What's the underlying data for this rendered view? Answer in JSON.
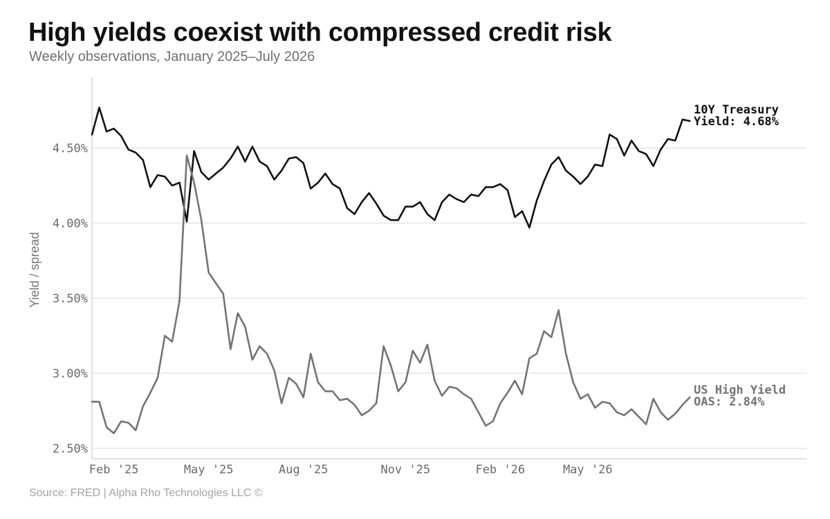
{
  "chart_data": {
    "type": "line",
    "title": "High yields coexist with compressed credit risk",
    "subtitle": "Weekly observations, January 2025–July 2026",
    "ylabel": "Yield / spread",
    "xlabel": "",
    "ylim": [
      2.43,
      4.97
    ],
    "y_ticks": [
      2.5,
      3.0,
      3.5,
      4.0,
      4.5
    ],
    "y_tick_labels": [
      "2.50%",
      "3.00%",
      "3.50%",
      "4.00%",
      "4.50%"
    ],
    "x_tick_labels": [
      "Feb '25",
      "May '25",
      "Aug '25",
      "Nov '25",
      "Feb '26",
      "May '26"
    ],
    "x_tick_weeks": [
      3,
      16,
      29,
      43,
      56,
      68
    ],
    "x_range_weeks": [
      0,
      98
    ],
    "grid": "horizontal",
    "source": "Source: FRED | Alpha Rho Technologies LLC ©",
    "series": [
      {
        "name": "10Y Treasury",
        "end_label": [
          "10Y Treasury",
          "Yield: 4.68%"
        ],
        "color": "#111111",
        "values": [
          4.59,
          4.77,
          4.61,
          4.63,
          4.58,
          4.49,
          4.47,
          4.42,
          4.24,
          4.32,
          4.31,
          4.25,
          4.27,
          4.01,
          4.48,
          4.34,
          4.29,
          4.33,
          4.37,
          4.43,
          4.51,
          4.41,
          4.51,
          4.41,
          4.38,
          4.29,
          4.35,
          4.43,
          4.44,
          4.4,
          4.23,
          4.27,
          4.33,
          4.26,
          4.23,
          4.1,
          4.06,
          4.14,
          4.2,
          4.13,
          4.05,
          4.02,
          4.02,
          4.11,
          4.11,
          4.14,
          4.06,
          4.02,
          4.14,
          4.19,
          4.16,
          4.14,
          4.19,
          4.18,
          4.24,
          4.24,
          4.26,
          4.22,
          4.04,
          4.08,
          3.97,
          4.15,
          4.28,
          4.39,
          4.44,
          4.35,
          4.31,
          4.26,
          4.31,
          4.39,
          4.38,
          4.59,
          4.56,
          4.45,
          4.55,
          4.48,
          4.46,
          4.38,
          4.49,
          4.56,
          4.55,
          4.69,
          4.68
        ]
      },
      {
        "name": "US High Yield OAS",
        "end_label": [
          "US High Yield",
          "OAS: 2.84%"
        ],
        "color": "#737373",
        "values": [
          2.81,
          2.81,
          2.64,
          2.6,
          2.68,
          2.67,
          2.62,
          2.78,
          2.87,
          2.97,
          3.25,
          3.21,
          3.48,
          4.45,
          4.27,
          4.02,
          3.67,
          3.6,
          3.53,
          3.16,
          3.4,
          3.31,
          3.09,
          3.18,
          3.13,
          3.02,
          2.8,
          2.97,
          2.93,
          2.84,
          3.13,
          2.94,
          2.88,
          2.88,
          2.82,
          2.83,
          2.79,
          2.72,
          2.75,
          2.8,
          3.18,
          3.05,
          2.88,
          2.94,
          3.15,
          3.07,
          3.19,
          2.95,
          2.85,
          2.91,
          2.9,
          2.86,
          2.83,
          2.74,
          2.65,
          2.68,
          2.8,
          2.87,
          2.95,
          2.86,
          3.1,
          3.13,
          3.28,
          3.24,
          3.42,
          3.13,
          2.94,
          2.83,
          2.86,
          2.77,
          2.81,
          2.8,
          2.74,
          2.72,
          2.76,
          2.71,
          2.66,
          2.83,
          2.74,
          2.69,
          2.73,
          2.79,
          2.84
        ]
      }
    ]
  }
}
